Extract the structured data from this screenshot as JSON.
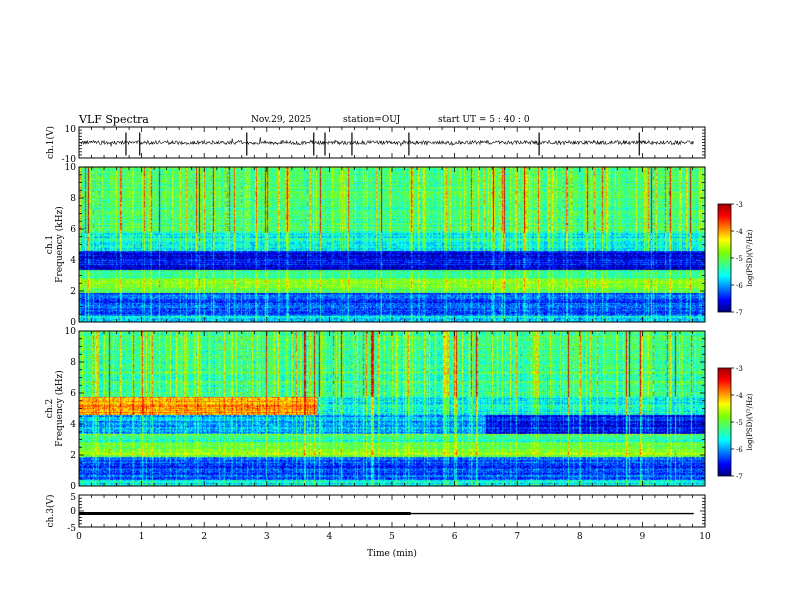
{
  "header": {
    "title": "VLF Spectra",
    "date": "Nov.29, 2025",
    "station": "station=OUJ",
    "start": "start  UT =   5  : 40 : 0"
  },
  "colors": {
    "colormap": [
      "#00007f",
      "#0000ff",
      "#0080ff",
      "#00ffff",
      "#40ff80",
      "#80ff00",
      "#ffff00",
      "#ff8000",
      "#ff0000",
      "#a00000"
    ]
  },
  "chart_data": [
    {
      "type": "line",
      "ylabel": "ch.1(V)",
      "ylim": [
        -10,
        10
      ],
      "yticks": [
        -10,
        10
      ],
      "xlim": [
        0,
        10
      ],
      "baseline": 0,
      "spikes_min": [
        0.75,
        0.97,
        2.68,
        3.75,
        3.93,
        4.36,
        5.27,
        7.35,
        8.95
      ],
      "visible_end_min": 9.82
    },
    {
      "type": "heatmap",
      "ylabel": "ch.1 Frequency (kHz)",
      "ylim": [
        0,
        10
      ],
      "yticks": [
        0,
        2,
        4,
        6,
        8,
        10
      ],
      "xlim": [
        0,
        10
      ],
      "colorbar": {
        "label": "log(PSD)(V²/Hz)",
        "range": [
          -7,
          -3
        ],
        "ticks": [
          -3,
          -4,
          -5,
          -6,
          -7
        ]
      }
    },
    {
      "type": "heatmap",
      "ylabel": "ch.2 Frequency (kHz)",
      "ylim": [
        0,
        10
      ],
      "yticks": [
        0,
        2,
        4,
        6,
        8,
        10
      ],
      "xlim": [
        0,
        10
      ],
      "colorbar": {
        "label": "log(PSD)(V²/Hz)",
        "range": [
          -7,
          -3
        ],
        "ticks": [
          -3,
          -4,
          -5,
          -6,
          -7
        ]
      }
    },
    {
      "type": "line",
      "ylabel": "ch.3(V)",
      "ylim": [
        -5,
        5
      ],
      "yticks": [
        -5,
        0,
        5
      ],
      "xlim": [
        0,
        10
      ],
      "xticks": [
        0,
        1,
        2,
        3,
        4,
        5,
        6,
        7,
        8,
        9,
        10
      ],
      "xlabel": "Time (min)",
      "value": -0.8,
      "thick_until_min": 5.3
    }
  ]
}
